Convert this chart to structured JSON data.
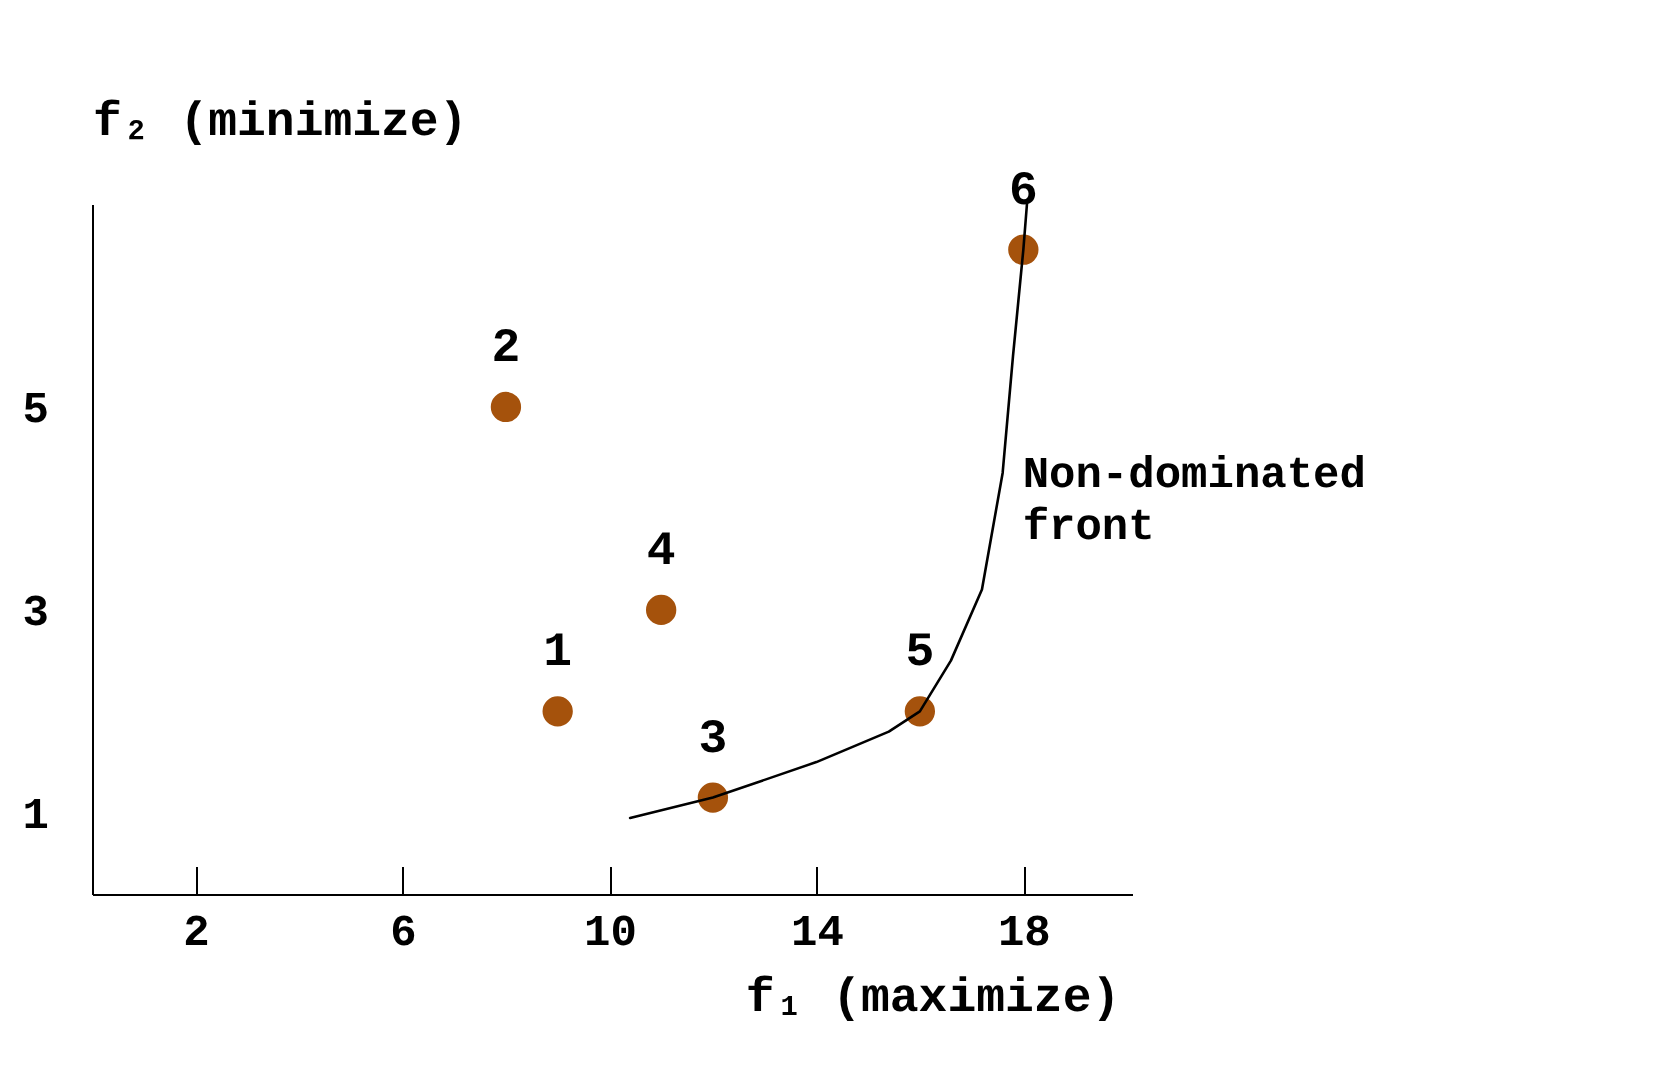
{
  "chart_data": {
    "type": "scatter",
    "xlabel": "f₁ (maximize)",
    "ylabel": "f₂ (minimize)",
    "xlim": [
      0,
      20.1
    ],
    "ylim": [
      0.2,
      7.0
    ],
    "xticks": [
      2,
      6,
      10,
      14,
      18
    ],
    "yticks": [
      1,
      3,
      5
    ],
    "grid": false,
    "series": [
      {
        "color": "#a5520c",
        "marker": "circle",
        "x": [
          9,
          8,
          12,
          11,
          16,
          18
        ],
        "values": [
          2,
          5,
          1.15,
          3,
          2,
          6.55
        ]
      },
      {
        "type": "line",
        "name": "Non-dominated front",
        "color": "#000000",
        "line_style": "solid",
        "marker": "none",
        "x": [
          10.4,
          12,
          14,
          15.4,
          16,
          16.6,
          17.2,
          17.6,
          17.8,
          18,
          18.07
        ],
        "values": [
          0.95,
          1.15,
          1.5,
          1.8,
          2,
          2.5,
          3.2,
          4.35,
          5.5,
          6.55,
          7.0
        ]
      }
    ],
    "annotations": [
      {
        "text": "1",
        "x": 9,
        "y": 2
      },
      {
        "text": "2",
        "x": 8,
        "y": 5
      },
      {
        "text": "3",
        "x": 12,
        "y": 1.15
      },
      {
        "text": "4",
        "x": 11,
        "y": 3
      },
      {
        "text": "5",
        "x": 16,
        "y": 2
      },
      {
        "text": "6",
        "x": 18,
        "y": 6.55
      }
    ]
  }
}
